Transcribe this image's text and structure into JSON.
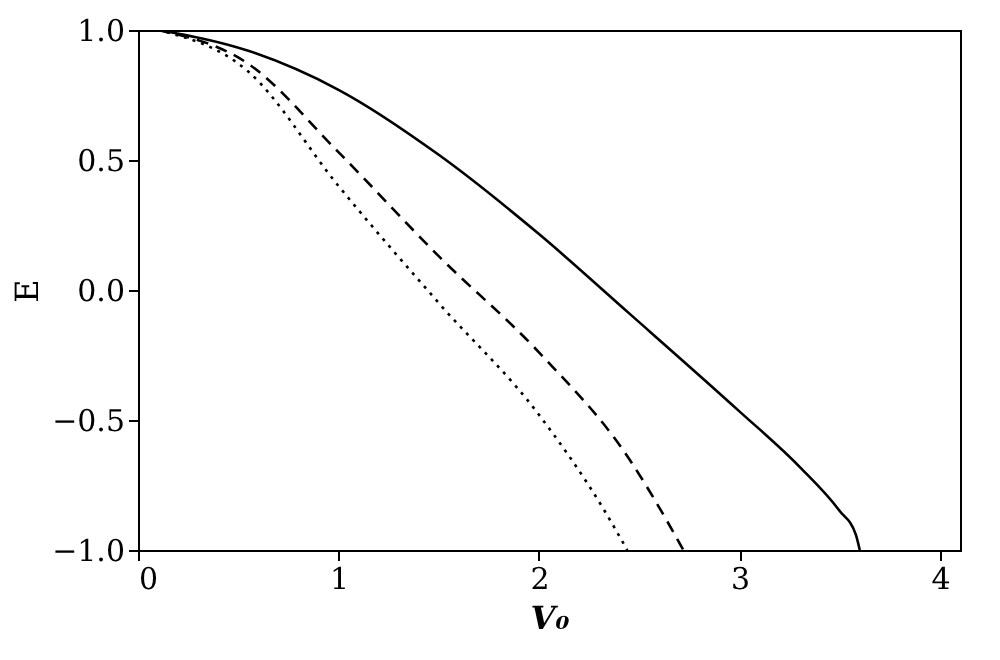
{
  "chart_data": {
    "type": "line",
    "xlabel": "V₀",
    "ylabel": "E",
    "xlim": [
      0,
      4.1
    ],
    "ylim": [
      -1.0,
      1.0
    ],
    "xticks": [
      0,
      1,
      2,
      3,
      4
    ],
    "yticks": [
      {
        "value": -1.0,
        "label": "−1.0"
      },
      {
        "value": -0.5,
        "label": "−0.5"
      },
      {
        "value": 0.0,
        "label": "0.0"
      },
      {
        "value": 0.5,
        "label": "0.5"
      },
      {
        "value": 1.0,
        "label": "1.0"
      }
    ],
    "grid": false,
    "marker": "none",
    "series": [
      {
        "color": "#000000",
        "line_style": "solid",
        "x": [
          0.1,
          0.55,
          1.0,
          1.5,
          2.0,
          2.45,
          2.99,
          3.3,
          3.5,
          3.58,
          3.6
        ],
        "values": [
          1.0,
          0.92,
          0.77,
          0.52,
          0.215,
          -0.09,
          -0.46,
          -0.68,
          -0.85,
          -0.94,
          -1.0
        ]
      },
      {
        "color": "#000000",
        "line_style": "dashed",
        "x": [
          0.1,
          0.55,
          1.0,
          1.5,
          2.0,
          2.45,
          2.64,
          2.72
        ],
        "values": [
          1.0,
          0.87,
          0.53,
          0.13,
          -0.24,
          -0.65,
          -0.89,
          -1.0
        ]
      },
      {
        "color": "#000000",
        "line_style": "dotted",
        "x": [
          0.1,
          0.55,
          1.0,
          1.5,
          2.0,
          2.32,
          2.44
        ],
        "values": [
          1.0,
          0.84,
          0.4,
          -0.05,
          -0.48,
          -0.84,
          -1.0
        ]
      }
    ]
  }
}
